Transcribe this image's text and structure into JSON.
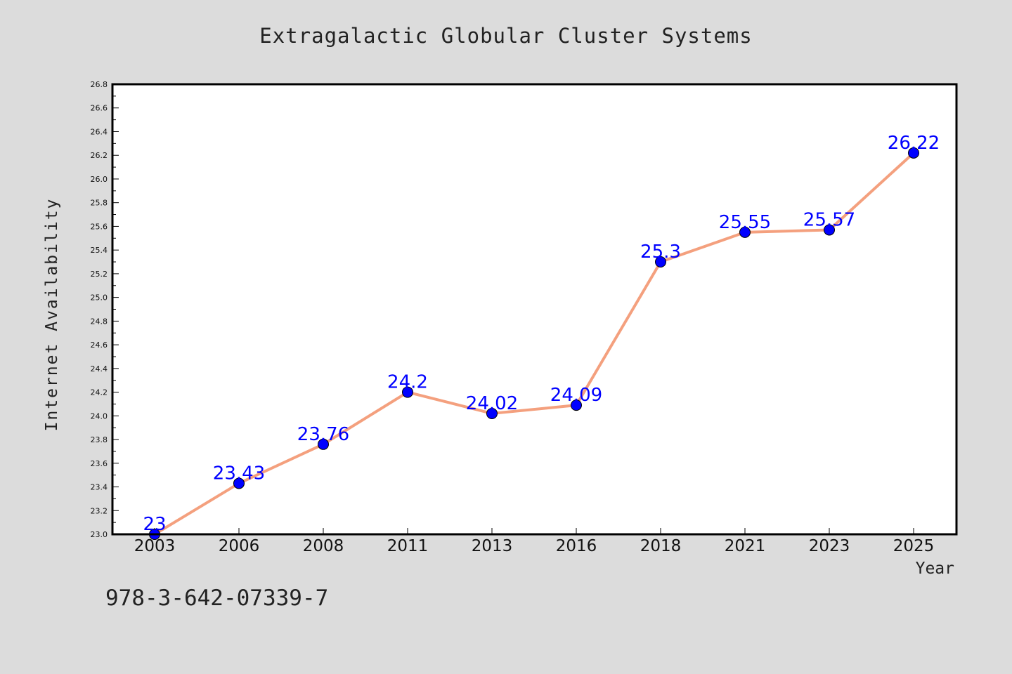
{
  "chart_data": {
    "type": "line",
    "title": "Extragalactic Globular Cluster Systems",
    "xlabel": "Year",
    "ylabel": "Internet Availability",
    "categories": [
      "2003",
      "2006",
      "2008",
      "2011",
      "2013",
      "2016",
      "2018",
      "2021",
      "2023",
      "2025"
    ],
    "series": [
      {
        "values": [
          23,
          23.43,
          23.76,
          24.2,
          24.02,
          24.09,
          25.3,
          25.55,
          25.57,
          26.22
        ],
        "labels": [
          "23",
          "23.43",
          "23.76",
          "24.2",
          "24.02",
          "24.09",
          "25.3",
          "25.55",
          "25.57",
          "26.22"
        ],
        "line_color": "#f4a07e",
        "marker_color": "#0000ff"
      }
    ],
    "ylim": [
      23.0,
      26.8
    ],
    "yticks": [
      "23.0",
      "23.2",
      "23.4",
      "23.6",
      "23.8",
      "24.0",
      "24.2",
      "24.4",
      "24.6",
      "24.8",
      "25.0",
      "25.2",
      "25.4",
      "25.6",
      "25.8",
      "26.0",
      "26.2",
      "26.4",
      "26.6",
      "26.8"
    ],
    "grid": false,
    "legend": "none"
  },
  "footnote": "978-3-642-07339-7"
}
